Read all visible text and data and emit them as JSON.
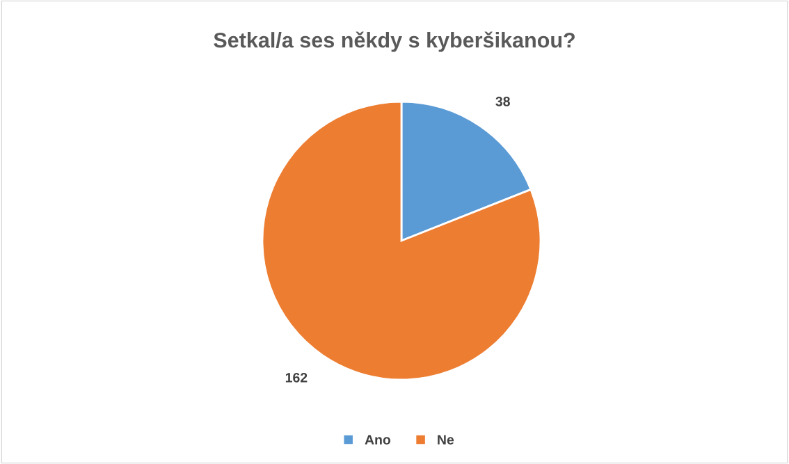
{
  "chart_data": {
    "type": "pie",
    "title": "Setkal/a ses někdy s kyberšikanou?",
    "categories": [
      "Ano",
      "Ne"
    ],
    "values": [
      38,
      162
    ],
    "colors": [
      "#5b9bd5",
      "#ed7d31"
    ],
    "data_labels": true,
    "legend": "bottom"
  }
}
